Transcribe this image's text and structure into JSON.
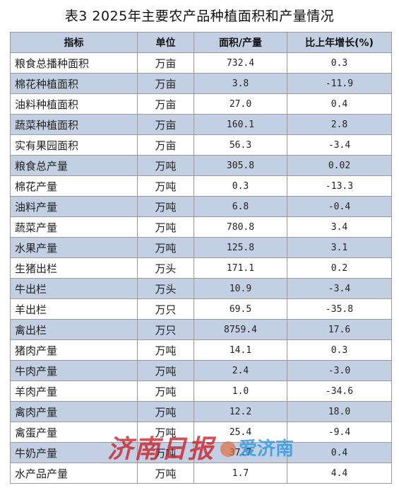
{
  "title": "表3 2025年主要农产品种植面积和产量情况",
  "headers": {
    "indicator": "指标",
    "unit": "单位",
    "value": "面积/产量",
    "growth": "比上年增长(%)"
  },
  "rows": [
    {
      "name": "粮食总播种面积",
      "unit": "万亩",
      "value": "732.4",
      "growth": "0.3"
    },
    {
      "name": "棉花种植面积",
      "unit": "万亩",
      "value": "3.8",
      "growth": "-11.9"
    },
    {
      "name": "油料种植面积",
      "unit": "万亩",
      "value": "27.0",
      "growth": "0.4"
    },
    {
      "name": "蔬菜种植面积",
      "unit": "万亩",
      "value": "160.1",
      "growth": "2.8"
    },
    {
      "name": "实有果园面积",
      "unit": "万亩",
      "value": "56.3",
      "growth": "-3.4"
    },
    {
      "name": "粮食总产量",
      "unit": "万吨",
      "value": "305.8",
      "growth": "0.02"
    },
    {
      "name": "棉花产量",
      "unit": "万吨",
      "value": "0.3",
      "growth": "-13.3"
    },
    {
      "name": "油料产量",
      "unit": "万吨",
      "value": "6.8",
      "growth": "-0.4"
    },
    {
      "name": "蔬菜产量",
      "unit": "万吨",
      "value": "780.8",
      "growth": "3.4"
    },
    {
      "name": "水果产量",
      "unit": "万吨",
      "value": "125.8",
      "growth": "3.1"
    },
    {
      "name": "生猪出栏",
      "unit": "万头",
      "value": "171.1",
      "growth": "0.2"
    },
    {
      "name": "牛出栏",
      "unit": "万头",
      "value": "10.9",
      "growth": "-3.4"
    },
    {
      "name": "羊出栏",
      "unit": "万只",
      "value": "69.5",
      "growth": "-35.8"
    },
    {
      "name": "禽出栏",
      "unit": "万只",
      "value": "8759.4",
      "growth": "17.6"
    },
    {
      "name": "猪肉产量",
      "unit": "万吨",
      "value": "14.1",
      "growth": "0.3"
    },
    {
      "name": "牛肉产量",
      "unit": "万吨",
      "value": "2.4",
      "growth": "-3.0"
    },
    {
      "name": "羊肉产量",
      "unit": "万吨",
      "value": "1.0",
      "growth": "-34.6"
    },
    {
      "name": "禽肉产量",
      "unit": "万吨",
      "value": "12.2",
      "growth": "18.0"
    },
    {
      "name": "禽蛋产量",
      "unit": "万吨",
      "value": "25.4",
      "growth": "-9.4"
    },
    {
      "name": "牛奶产量",
      "unit": "万吨",
      "value": "37.7",
      "growth": "0.4"
    },
    {
      "name": "水产品产量",
      "unit": "万吨",
      "value": "1.7",
      "growth": "4.4"
    }
  ],
  "watermark": {
    "left_text": "济南日报",
    "right_text": "爱济南"
  },
  "colors": {
    "header_bg": "#c3d0e4",
    "stripe_bg": "#c3d0e4",
    "watermark_red": "#c81e28",
    "watermark_blue": "#2896e1"
  }
}
